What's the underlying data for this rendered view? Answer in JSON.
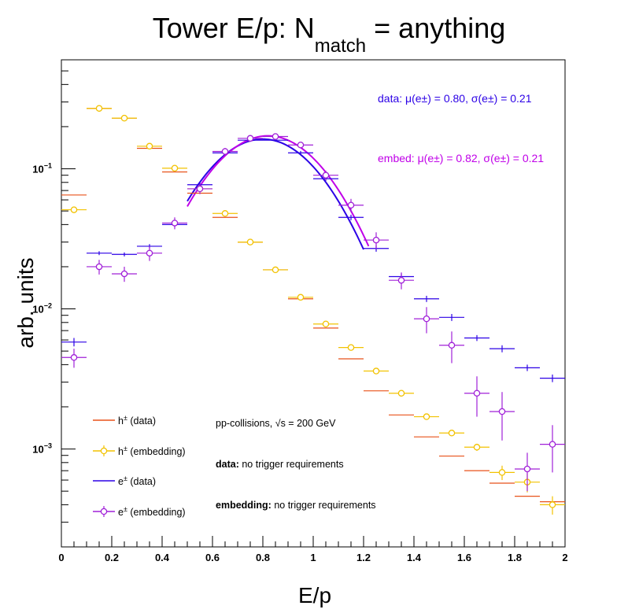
{
  "chart_data": {
    "type": "scatter",
    "title_main": "Tower E/p: N",
    "title_sub": "match",
    "title_tail": " = anything",
    "xlabel": "E/p",
    "ylabel": "arb. units",
    "xlim": [
      0,
      2
    ],
    "ylim": [
      0.0002,
      0.6
    ],
    "yscale": "log",
    "x_ticks": [
      "0",
      "0.2",
      "0.4",
      "0.6",
      "0.8",
      "1",
      "1.2",
      "1.4",
      "1.6",
      "1.8",
      "2"
    ],
    "y_ticks": [
      {
        "value": 0.001,
        "base": "10",
        "exp": "−3"
      },
      {
        "value": 0.01,
        "base": "10",
        "exp": "−2"
      },
      {
        "value": 0.1,
        "base": "10",
        "exp": "−1"
      }
    ],
    "series": [
      {
        "name": "h± (data)",
        "label": "h",
        "sup": "±",
        "suffix": " (data)",
        "color": "#e8521a",
        "marker": "none",
        "x": [
          0.05,
          0.15,
          0.25,
          0.35,
          0.45,
          0.55,
          0.65,
          0.75,
          0.85,
          0.95,
          1.05,
          1.15,
          1.25,
          1.35,
          1.45,
          1.55,
          1.65,
          1.75,
          1.85,
          1.95
        ],
        "y": [
          0.065,
          0.27,
          0.23,
          0.14,
          0.095,
          0.067,
          0.045,
          0.03,
          0.019,
          0.0118,
          0.0073,
          0.0044,
          0.0026,
          0.00175,
          0.00122,
          0.00089,
          0.0007,
          0.00057,
          0.00046,
          0.00042
        ]
      },
      {
        "name": "h± (embedding)",
        "label": "h",
        "sup": "±",
        "suffix": " (embedding)",
        "color": "#f2c200",
        "marker": "circle",
        "x": [
          0.05,
          0.15,
          0.25,
          0.35,
          0.45,
          0.55,
          0.65,
          0.75,
          0.85,
          0.95,
          1.05,
          1.15,
          1.25,
          1.35,
          1.45,
          1.55,
          1.65,
          1.75,
          1.85,
          1.95
        ],
        "y": [
          0.051,
          0.27,
          0.23,
          0.145,
          0.101,
          0.072,
          0.048,
          0.03,
          0.019,
          0.0121,
          0.0078,
          0.0053,
          0.0036,
          0.0025,
          0.0017,
          0.0013,
          0.00103,
          0.00068,
          0.00058,
          0.0004
        ],
        "err": [
          0.002,
          0.004,
          0.004,
          0.003,
          0.002,
          0.002,
          0.001,
          0.0006,
          0.0004,
          0.0003,
          0.0002,
          0.00015,
          0.0001,
          8e-05,
          7e-05,
          6e-05,
          6e-05,
          8e-05,
          9e-05,
          6e-05
        ]
      },
      {
        "name": "e± (data)",
        "label": "e",
        "sup": "±",
        "suffix": " (data)",
        "color": "#2b00e6",
        "marker": "none",
        "x": [
          0.05,
          0.15,
          0.25,
          0.35,
          0.45,
          0.55,
          0.65,
          0.75,
          0.85,
          0.95,
          1.05,
          1.15,
          1.25,
          1.35,
          1.45,
          1.55,
          1.65,
          1.75,
          1.85,
          1.95
        ],
        "y": [
          0.0058,
          0.025,
          0.0245,
          0.028,
          0.04,
          0.077,
          0.13,
          0.16,
          0.16,
          0.13,
          0.085,
          0.045,
          0.027,
          0.017,
          0.0118,
          0.0087,
          0.0062,
          0.0052,
          0.0038,
          0.0032
        ],
        "err": [
          0.0004,
          0.0008,
          0.0008,
          0.001,
          0.0015,
          0.003,
          0.004,
          0.004,
          0.004,
          0.004,
          0.003,
          0.002,
          0.0014,
          0.0009,
          0.0006,
          0.0005,
          0.0003,
          0.0003,
          0.0002,
          0.0002
        ]
      },
      {
        "name": "e± (embedding)",
        "label": "e",
        "sup": "±",
        "suffix": " (embedding)",
        "color": "#a020d8",
        "marker": "circle",
        "x": [
          0.05,
          0.15,
          0.25,
          0.35,
          0.45,
          0.55,
          0.65,
          0.75,
          0.85,
          0.95,
          1.05,
          1.15,
          1.25,
          1.35,
          1.45,
          1.55,
          1.65,
          1.75,
          1.85,
          1.95
        ],
        "y": [
          0.0045,
          0.02,
          0.0178,
          0.025,
          0.041,
          0.072,
          0.133,
          0.165,
          0.17,
          0.148,
          0.09,
          0.055,
          0.031,
          0.016,
          0.0085,
          0.0055,
          0.0025,
          0.00185,
          0.00072,
          0.00108
        ],
        "err": [
          0.0007,
          0.0024,
          0.0022,
          0.003,
          0.004,
          0.006,
          0.008,
          0.009,
          0.009,
          0.008,
          0.007,
          0.006,
          0.0042,
          0.0022,
          0.0018,
          0.0014,
          0.0008,
          0.0007,
          0.00022,
          0.0004
        ]
      }
    ],
    "fits": [
      {
        "name": "data fit",
        "color": "#2b00e6",
        "mu": 0.8,
        "sigma": 0.21,
        "amp": 0.163,
        "range": [
          0.5,
          1.2
        ]
      },
      {
        "name": "embed fit",
        "color": "#c000e8",
        "mu": 0.82,
        "sigma": 0.21,
        "amp": 0.172,
        "range": [
          0.5,
          1.22
        ]
      }
    ],
    "annotations": {
      "data_fit_text": "data: μ(e±) = 0.80, σ(e±) = 0.21",
      "embed_fit_text": "embed: μ(e±) = 0.82, σ(e±) = 0.21",
      "collision": "pp-collisions, √s = 200 GeV",
      "data_req_bold": "data:",
      "data_req_text": " no trigger requirements",
      "embed_req_bold": "embedding:",
      "embed_req_text": " no trigger requirements"
    },
    "legend_position": "bottom-left",
    "grid": false
  }
}
